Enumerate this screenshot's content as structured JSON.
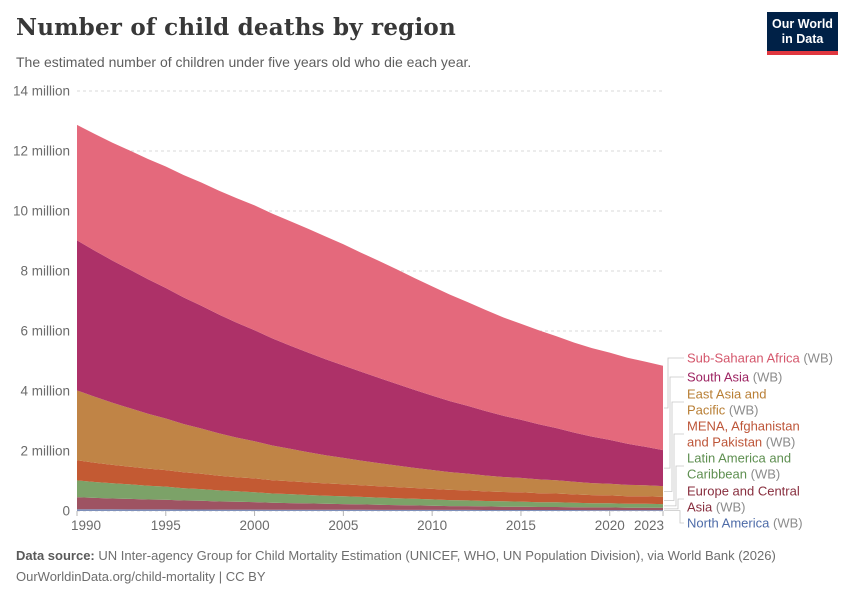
{
  "header": {
    "title": "Number of child deaths by region",
    "subtitle": "The estimated number of children under five years old who die each year."
  },
  "logo": {
    "line1": "Our World",
    "line2": "in Data",
    "bg": "#002147",
    "accent": "#e0373f"
  },
  "chart_data": {
    "type": "area",
    "stacked": true,
    "title": "Number of child deaths by region",
    "xlabel": "",
    "ylabel": "",
    "unit": "million",
    "ylim": [
      0,
      14
    ],
    "grid": "dashed-horizontal",
    "legend_position": "right",
    "x": [
      1990,
      1991,
      1992,
      1993,
      1994,
      1995,
      1996,
      1997,
      1998,
      1999,
      2000,
      2001,
      2002,
      2003,
      2004,
      2005,
      2006,
      2007,
      2008,
      2009,
      2010,
      2011,
      2012,
      2013,
      2014,
      2015,
      2016,
      2017,
      2018,
      2019,
      2020,
      2021,
      2022,
      2023
    ],
    "x_ticks": [
      {
        "value": 1990,
        "label": "1990"
      },
      {
        "value": 1995,
        "label": "1995"
      },
      {
        "value": 2000,
        "label": "2000"
      },
      {
        "value": 2005,
        "label": "2005"
      },
      {
        "value": 2010,
        "label": "2010"
      },
      {
        "value": 2015,
        "label": "2015"
      },
      {
        "value": 2020,
        "label": "2020"
      },
      {
        "value": 2023,
        "label": "2023"
      }
    ],
    "y_ticks": [
      {
        "value": 0,
        "label": "0"
      },
      {
        "value": 2,
        "label": "2 million"
      },
      {
        "value": 4,
        "label": "4 million"
      },
      {
        "value": 6,
        "label": "6 million"
      },
      {
        "value": 8,
        "label": "8 million"
      },
      {
        "value": 10,
        "label": "10 million"
      },
      {
        "value": 12,
        "label": "12 million"
      },
      {
        "value": 14,
        "label": "14 million"
      }
    ],
    "series": [
      {
        "name": "Sub-Saharan Africa",
        "suffix": "(WB)",
        "label_lines": [
          "Sub-Saharan Africa"
        ],
        "color": "#e4697c",
        "text_color": "#d4566b",
        "values": [
          3.85,
          3.89,
          3.93,
          3.97,
          4.01,
          4.05,
          4.08,
          4.11,
          4.13,
          4.15,
          4.16,
          4.16,
          4.15,
          4.13,
          4.09,
          4.04,
          3.97,
          3.9,
          3.82,
          3.73,
          3.64,
          3.55,
          3.46,
          3.37,
          3.28,
          3.2,
          3.13,
          3.06,
          3.0,
          2.95,
          2.91,
          2.87,
          2.84,
          2.81
        ]
      },
      {
        "name": "South Asia",
        "suffix": "(WB)",
        "label_lines": [
          "South Asia"
        ],
        "color": "#ad3168",
        "text_color": "#9d2462",
        "values": [
          5.0,
          4.87,
          4.74,
          4.61,
          4.48,
          4.35,
          4.22,
          4.09,
          3.96,
          3.83,
          3.7,
          3.57,
          3.44,
          3.32,
          3.2,
          3.08,
          2.96,
          2.84,
          2.72,
          2.6,
          2.48,
          2.37,
          2.26,
          2.15,
          2.04,
          1.94,
          1.84,
          1.74,
          1.64,
          1.55,
          1.46,
          1.37,
          1.28,
          1.2
        ]
      },
      {
        "name": "East Asia and Pacific",
        "suffix": "(WB)",
        "label_lines": [
          "East Asia and",
          "Pacific"
        ],
        "color": "#c08446",
        "text_color": "#b87e34",
        "values": [
          2.33,
          2.2,
          2.07,
          1.95,
          1.83,
          1.72,
          1.61,
          1.51,
          1.41,
          1.32,
          1.24,
          1.16,
          1.08,
          1.01,
          0.94,
          0.88,
          0.82,
          0.77,
          0.72,
          0.67,
          0.63,
          0.59,
          0.56,
          0.53,
          0.5,
          0.48,
          0.46,
          0.44,
          0.42,
          0.4,
          0.39,
          0.38,
          0.37,
          0.36
        ]
      },
      {
        "name": "MENA, Afghanistan and Pakistan",
        "suffix": "(WB)",
        "label_lines": [
          "MENA, Afghanistan",
          "and Pakistan"
        ],
        "color": "#c35a33",
        "text_color": "#bd5538",
        "values": [
          0.67,
          0.64,
          0.61,
          0.59,
          0.57,
          0.55,
          0.53,
          0.51,
          0.49,
          0.47,
          0.46,
          0.44,
          0.43,
          0.42,
          0.41,
          0.4,
          0.39,
          0.38,
          0.37,
          0.36,
          0.35,
          0.34,
          0.33,
          0.32,
          0.31,
          0.31,
          0.3,
          0.29,
          0.28,
          0.27,
          0.26,
          0.25,
          0.25,
          0.24
        ]
      },
      {
        "name": "Latin America and Caribbean",
        "suffix": "(WB)",
        "label_lines": [
          "Latin America and",
          "Caribbean"
        ],
        "color": "#7ca268",
        "text_color": "#5e8f50",
        "values": [
          0.56,
          0.53,
          0.51,
          0.48,
          0.46,
          0.44,
          0.41,
          0.39,
          0.37,
          0.35,
          0.33,
          0.31,
          0.3,
          0.28,
          0.27,
          0.26,
          0.25,
          0.24,
          0.23,
          0.22,
          0.21,
          0.2,
          0.19,
          0.18,
          0.18,
          0.17,
          0.16,
          0.16,
          0.15,
          0.14,
          0.14,
          0.13,
          0.13,
          0.12
        ]
      },
      {
        "name": "Europe and Central Asia",
        "suffix": "(WB)",
        "label_lines": [
          "Europe and Central",
          "Asia"
        ],
        "color": "#9e5362",
        "text_color": "#882e3e",
        "values": [
          0.4,
          0.38,
          0.36,
          0.35,
          0.33,
          0.32,
          0.3,
          0.29,
          0.27,
          0.26,
          0.25,
          0.23,
          0.22,
          0.21,
          0.2,
          0.19,
          0.18,
          0.17,
          0.16,
          0.15,
          0.14,
          0.13,
          0.13,
          0.12,
          0.11,
          0.11,
          0.1,
          0.1,
          0.09,
          0.09,
          0.09,
          0.08,
          0.08,
          0.08
        ]
      },
      {
        "name": "North America",
        "suffix": "(WB)",
        "label_lines": [
          "North America"
        ],
        "color": "#7d8fba",
        "text_color": "#4d6ba8",
        "values": [
          0.06,
          0.058,
          0.056,
          0.055,
          0.053,
          0.052,
          0.05,
          0.049,
          0.047,
          0.046,
          0.045,
          0.044,
          0.043,
          0.042,
          0.041,
          0.04,
          0.039,
          0.038,
          0.038,
          0.037,
          0.036,
          0.035,
          0.035,
          0.034,
          0.034,
          0.033,
          0.033,
          0.032,
          0.032,
          0.031,
          0.031,
          0.03,
          0.03,
          0.03
        ]
      }
    ]
  },
  "footer": {
    "source_label": "Data source:",
    "source_text": " UN Inter-agency Group for Child Mortality Estimation (UNICEF, WHO, UN Population Division), via World Bank (2026)",
    "license_line": "OurWorldinData.org/child-mortality | CC BY"
  }
}
